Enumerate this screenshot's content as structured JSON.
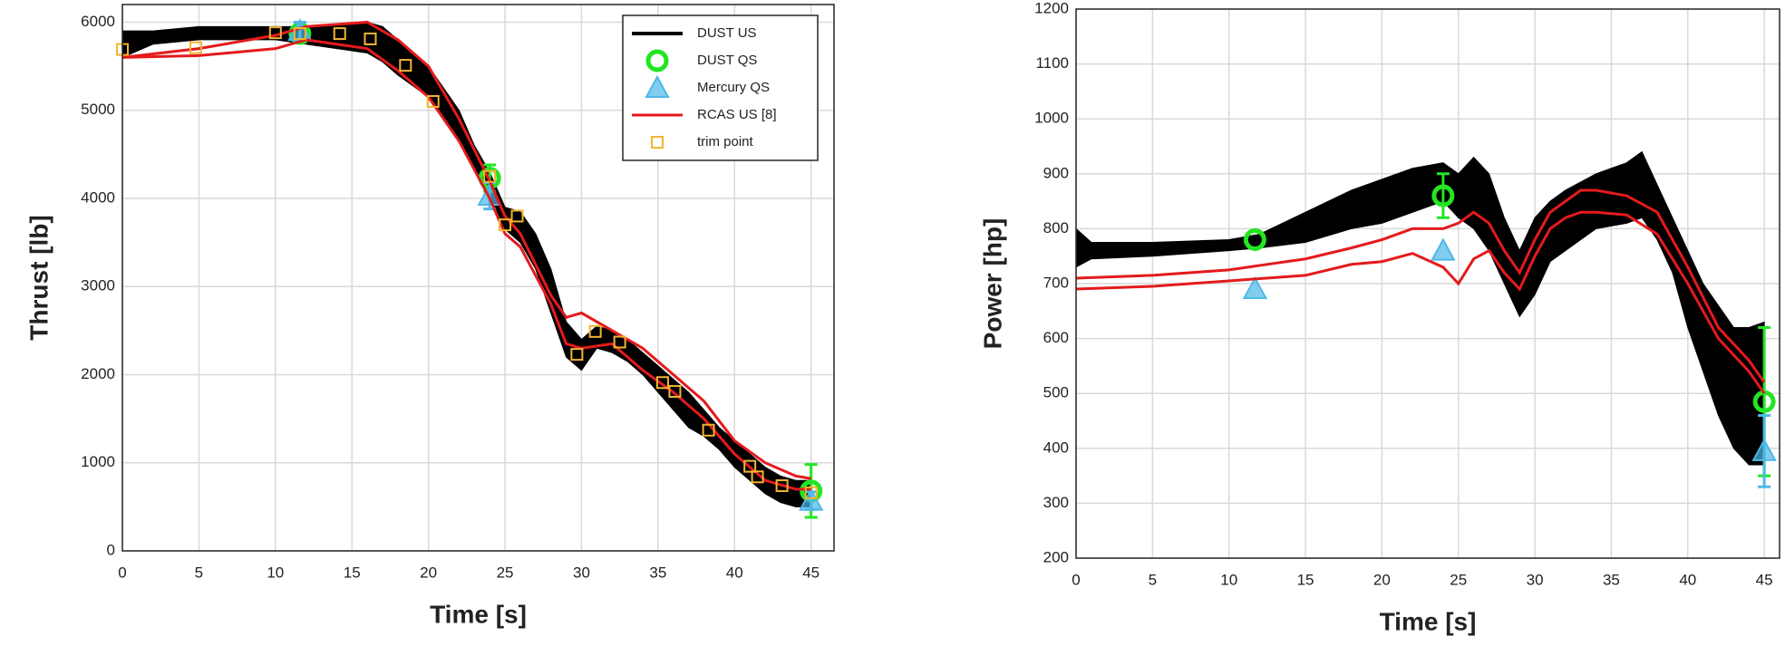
{
  "chart_data": [
    {
      "type": "line",
      "xlabel": "Time [s]",
      "ylabel": "Thrust [lb]",
      "xlim": [
        0,
        46.5
      ],
      "ylim": [
        0,
        6200
      ],
      "xticks": [
        0,
        5,
        10,
        15,
        20,
        25,
        30,
        35,
        40,
        45
      ],
      "yticks": [
        0,
        1000,
        2000,
        3000,
        4000,
        5000,
        6000
      ],
      "grid": true,
      "legend": "upper-right",
      "series": [
        {
          "name": "DUST US",
          "color": "#000000",
          "style": "band",
          "x": [
            0,
            2,
            5,
            8,
            10,
            12,
            14,
            16,
            17,
            18,
            20,
            22,
            23,
            24,
            25,
            26,
            27,
            28,
            29,
            30,
            31,
            32,
            33,
            34,
            35,
            36,
            37,
            38,
            39,
            40,
            41,
            42,
            43,
            44,
            45
          ],
          "lower": [
            5600,
            5750,
            5800,
            5800,
            5800,
            5750,
            5700,
            5650,
            5550,
            5400,
            5150,
            4650,
            4350,
            4000,
            3650,
            3500,
            3200,
            2700,
            2200,
            2050,
            2300,
            2250,
            2150,
            2000,
            1800,
            1600,
            1400,
            1300,
            1150,
            950,
            800,
            650,
            550,
            500,
            500
          ],
          "upper": [
            5900,
            5900,
            5950,
            5950,
            5950,
            5950,
            5980,
            6000,
            5950,
            5800,
            5500,
            5000,
            4600,
            4300,
            3900,
            3850,
            3600,
            3200,
            2600,
            2400,
            2550,
            2500,
            2400,
            2250,
            2100,
            1950,
            1800,
            1600,
            1400,
            1250,
            1100,
            950,
            850,
            800,
            800
          ]
        },
        {
          "name": "DUST QS",
          "color": "#22e622",
          "style": "circle",
          "x": [
            11.6,
            24,
            45
          ],
          "values": [
            5870,
            4230,
            680
          ],
          "errors": [
            100,
            150,
            300
          ]
        },
        {
          "name": "Mercury QS",
          "color": "#4db8e8",
          "style": "triangle",
          "x": [
            11.6,
            24,
            45
          ],
          "values": [
            5900,
            4030,
            570
          ],
          "errors": [
            100,
            150,
            100
          ]
        },
        {
          "name": "RCAS US [8]",
          "color": "#e41a1c",
          "style": "lines",
          "x": [
            0,
            5,
            10,
            12,
            16,
            18,
            20,
            22,
            24,
            25,
            26,
            28,
            29,
            30,
            32,
            34,
            36,
            38,
            40,
            42,
            44,
            45
          ],
          "upper": [
            5600,
            5700,
            5850,
            5950,
            6000,
            5800,
            5500,
            4900,
            4200,
            3800,
            3600,
            2900,
            2650,
            2700,
            2500,
            2300,
            2000,
            1700,
            1250,
            1000,
            850,
            820
          ],
          "lower": [
            5600,
            5620,
            5700,
            5800,
            5700,
            5450,
            5150,
            4650,
            4000,
            3600,
            3450,
            2800,
            2350,
            2300,
            2350,
            2050,
            1800,
            1500,
            1100,
            800,
            700,
            700
          ]
        },
        {
          "name": "trim point",
          "color": "#f2b531",
          "style": "square",
          "x": [
            0,
            4.8,
            10,
            11.6,
            14.2,
            16.2,
            18.5,
            20.3,
            24,
            25,
            25.8,
            29.7,
            30.9,
            32.5,
            35.3,
            36.1,
            38.3,
            41,
            41.5,
            43.1,
            45
          ],
          "values": [
            5690,
            5710,
            5880,
            5870,
            5870,
            5810,
            5510,
            5100,
            4250,
            3700,
            3800,
            2230,
            2490,
            2370,
            1910,
            1810,
            1370,
            960,
            840,
            740,
            660
          ]
        }
      ]
    },
    {
      "type": "line",
      "xlabel": "Time [s]",
      "ylabel": "Power [hp]",
      "xlim": [
        0,
        46
      ],
      "ylim": [
        200,
        1200
      ],
      "xticks": [
        0,
        5,
        10,
        15,
        20,
        25,
        30,
        35,
        40,
        45
      ],
      "yticks": [
        200,
        300,
        400,
        500,
        600,
        700,
        800,
        900,
        1000,
        1100,
        1200
      ],
      "grid": true,
      "series": [
        {
          "color": "#000000",
          "style": "band",
          "x": [
            0,
            1,
            5,
            10,
            12,
            15,
            18,
            20,
            22,
            24,
            25,
            26,
            27,
            28,
            29,
            30,
            31,
            32,
            34,
            36,
            37,
            38,
            39,
            40,
            41,
            42,
            43,
            44,
            45
          ],
          "lower": [
            730,
            745,
            750,
            760,
            765,
            775,
            800,
            810,
            830,
            850,
            820,
            800,
            760,
            700,
            640,
            680,
            740,
            760,
            800,
            810,
            820,
            780,
            720,
            620,
            540,
            460,
            400,
            370,
            370
          ],
          "upper": [
            800,
            775,
            775,
            780,
            790,
            830,
            870,
            890,
            910,
            920,
            900,
            930,
            900,
            820,
            760,
            820,
            850,
            870,
            900,
            920,
            940,
            880,
            820,
            760,
            700,
            660,
            620,
            620,
            630
          ]
        },
        {
          "color": "#22e622",
          "style": "circle",
          "x": [
            11.7,
            24,
            45
          ],
          "values": [
            780,
            860,
            485
          ],
          "errors": [
            null,
            40,
            135
          ]
        },
        {
          "color": "#4db8e8",
          "style": "triangle",
          "x": [
            11.7,
            24,
            45
          ],
          "values": [
            690,
            760,
            395
          ],
          "errors": [
            null,
            null,
            65
          ]
        },
        {
          "color": "#e41a1c",
          "style": "lines",
          "x": [
            0,
            5,
            10,
            15,
            18,
            20,
            22,
            24,
            25,
            26,
            27,
            28,
            29,
            30,
            31,
            32,
            33,
            34,
            36,
            38,
            40,
            42,
            44,
            45
          ],
          "upper": [
            710,
            715,
            725,
            745,
            765,
            780,
            800,
            800,
            810,
            830,
            810,
            760,
            720,
            780,
            830,
            850,
            870,
            870,
            860,
            830,
            730,
            620,
            560,
            520
          ],
          "lower": [
            690,
            695,
            705,
            715,
            735,
            740,
            755,
            730,
            700,
            745,
            760,
            720,
            690,
            750,
            800,
            820,
            830,
            830,
            825,
            790,
            700,
            600,
            540,
            500
          ]
        }
      ]
    }
  ]
}
